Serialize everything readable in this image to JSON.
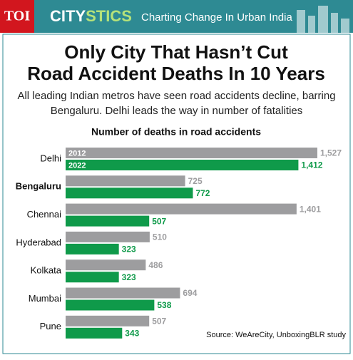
{
  "header": {
    "logo": "TOI",
    "brand_a": "CITY",
    "brand_b": "STICS",
    "tagline": "Charting Change In Urban India"
  },
  "chart_data": {
    "type": "bar",
    "orientation": "horizontal",
    "title": "Only City That Hasn’t Cut Road Accident Deaths In 10 Years",
    "subtitle": "All leading Indian metros have seen road accidents decline, barring Bengaluru. Delhi leads the way in number of fatalities",
    "chart_title": "Number of deaths in road accidents",
    "categories": [
      "Delhi",
      "Bengaluru",
      "Chennai",
      "Hyderabad",
      "Kolkata",
      "Mumbai",
      "Pune"
    ],
    "highlight": "Bengaluru",
    "series": [
      {
        "name": "2012",
        "color": "#9d9d9f",
        "values": [
          1527,
          725,
          1401,
          510,
          486,
          694,
          507
        ],
        "value_labels": [
          "1,527",
          "725",
          "1,401",
          "510",
          "486",
          "694",
          "507"
        ]
      },
      {
        "name": "2022",
        "color": "#0f9a4a",
        "values": [
          1412,
          772,
          507,
          323,
          323,
          538,
          343
        ],
        "value_labels": [
          "1,412",
          "772",
          "507",
          "323",
          "323",
          "538",
          "343"
        ]
      }
    ],
    "source": "Source: WeAreCity, UnboxingBLR study"
  }
}
